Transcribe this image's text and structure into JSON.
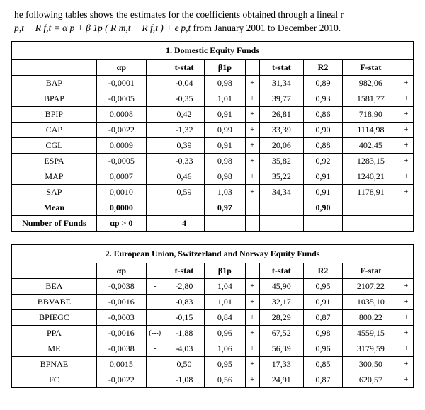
{
  "intro_text_1": "he following tables shows the estimates for the coefficients obtained through a lineal r",
  "intro_formula": "p,t − R f,t =  α p + β 1p ( R m,t − R f,t ) + ϵ p,t",
  "intro_text_2": "  from January 2001 to December 2010.",
  "table1": {
    "title": "1. Domestic Equity Funds",
    "headers": [
      "",
      "αp",
      "",
      "t-stat",
      "β1p",
      "",
      "t-stat",
      "R2",
      "F-stat",
      ""
    ],
    "rows": [
      {
        "label": "BAP",
        "ap": "-0,0001",
        "m1": "",
        "t1": "-0,04",
        "b1p": "0,98",
        "m2": "+",
        "t2": "31,34",
        "r2": "0,89",
        "f": "982,06",
        "m3": "+"
      },
      {
        "label": "BPAP",
        "ap": "-0,0005",
        "m1": "",
        "t1": "-0,35",
        "b1p": "1,01",
        "m2": "+",
        "t2": "39,77",
        "r2": "0,93",
        "f": "1581,77",
        "m3": "+"
      },
      {
        "label": "BPIP",
        "ap": "0,0008",
        "m1": "",
        "t1": "0,42",
        "b1p": "0,91",
        "m2": "+",
        "t2": "26,81",
        "r2": "0,86",
        "f": "718,90",
        "m3": "+"
      },
      {
        "label": "CAP",
        "ap": "-0,0022",
        "m1": "",
        "t1": "-1,32",
        "b1p": "0,99",
        "m2": "+",
        "t2": "33,39",
        "r2": "0,90",
        "f": "1114,98",
        "m3": "+"
      },
      {
        "label": "CGL",
        "ap": "0,0009",
        "m1": "",
        "t1": "0,39",
        "b1p": "0,91",
        "m2": "+",
        "t2": "20,06",
        "r2": "0,88",
        "f": "402,45",
        "m3": "+"
      },
      {
        "label": "ESPA",
        "ap": "-0,0005",
        "m1": "",
        "t1": "-0,33",
        "b1p": "0,98",
        "m2": "+",
        "t2": "35,82",
        "r2": "0,92",
        "f": "1283,15",
        "m3": "+"
      },
      {
        "label": "MAP",
        "ap": "0,0007",
        "m1": "",
        "t1": "0,46",
        "b1p": "0,98",
        "m2": "+",
        "t2": "35,22",
        "r2": "0,91",
        "f": "1240,21",
        "m3": "+"
      },
      {
        "label": "SAP",
        "ap": "0,0010",
        "m1": "",
        "t1": "0,59",
        "b1p": "1,03",
        "m2": "+",
        "t2": "34,34",
        "r2": "0,91",
        "f": "1178,91",
        "m3": "+"
      }
    ],
    "mean": {
      "label": "Mean",
      "ap": "0,0000",
      "b1p": "0,97",
      "r2": "0,90"
    },
    "footer": {
      "label": "Number of Funds",
      "ap": "αp > 0",
      "t1": "4"
    }
  },
  "table2": {
    "title": "2.       European Union, Switzerland and Norway Equity Funds",
    "headers": [
      "",
      "αp",
      "",
      "t-stat",
      "β1p",
      "",
      "t-stat",
      "R2",
      "F-stat",
      ""
    ],
    "rows": [
      {
        "label": "BEA",
        "ap": "-0,0038",
        "m1": "-",
        "t1": "-2,80",
        "b1p": "1,04",
        "m2": "+",
        "t2": "45,90",
        "r2": "0,95",
        "f": "2107,22",
        "m3": "+"
      },
      {
        "label": "BBVABE",
        "ap": "-0,0016",
        "m1": "",
        "t1": "-0,83",
        "b1p": "1,01",
        "m2": "+",
        "t2": "32,17",
        "r2": "0,91",
        "f": "1035,10",
        "m3": "+"
      },
      {
        "label": "BPIEGC",
        "ap": "-0,0003",
        "m1": "",
        "t1": "-0,15",
        "b1p": "0,84",
        "m2": "+",
        "t2": "28,29",
        "r2": "0,87",
        "f": "800,22",
        "m3": "+"
      },
      {
        "label": "PPA",
        "ap": "-0,0016",
        "m1": "(---)",
        "t1": "-1,88",
        "b1p": "0,96",
        "m2": "+",
        "t2": "67,52",
        "r2": "0,98",
        "f": "4559,15",
        "m3": "+"
      },
      {
        "label": "ME",
        "ap": "-0,0038",
        "m1": "-",
        "t1": "-4,03",
        "b1p": "1,06",
        "m2": "+",
        "t2": "56,39",
        "r2": "0,96",
        "f": "3179,59",
        "m3": "+"
      },
      {
        "label": "BPNAE",
        "ap": "0,0015",
        "m1": "",
        "t1": "0,50",
        "b1p": "0,95",
        "m2": "+",
        "t2": "17,33",
        "r2": "0,85",
        "f": "300,50",
        "m3": "+"
      },
      {
        "label": "FC",
        "ap": "-0,0022",
        "m1": "",
        "t1": "-1,08",
        "b1p": "0,56",
        "m2": "+",
        "t2": "24,91",
        "r2": "0,87",
        "f": "620,57",
        "m3": "+"
      }
    ]
  }
}
